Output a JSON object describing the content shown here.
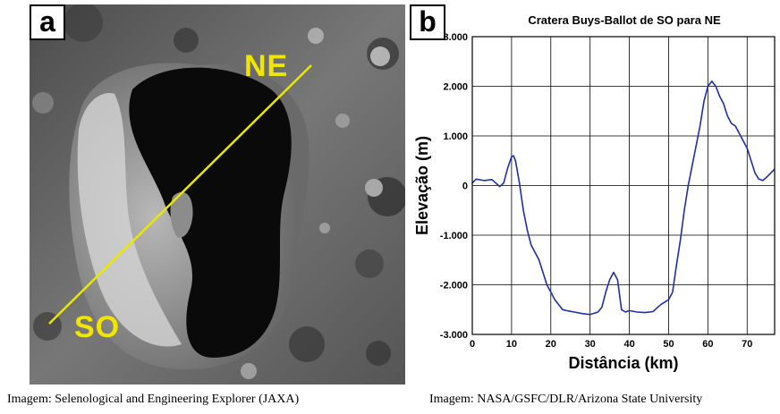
{
  "panel_a": {
    "letter": "a",
    "label_ne": "NE",
    "label_so": "SO",
    "transect_color": "#e8e800"
  },
  "panel_b": {
    "letter": "b"
  },
  "captions": {
    "left": "Imagem: Selenological and Engineering Explorer (JAXA)",
    "right": "Imagem: NASA/GSFC/DLR/Arizona State University"
  },
  "chart_data": {
    "type": "line",
    "title": "Cratera Buys-Ballot de SO para NE",
    "xlabel": "Distância (km)",
    "ylabel": "Elevação (m)",
    "xlim": [
      0,
      77
    ],
    "ylim": [
      -3000,
      3000
    ],
    "x_ticks": [
      0,
      10,
      20,
      30,
      40,
      50,
      60,
      70
    ],
    "y_ticks": [
      -3000,
      -2000,
      -1000,
      0,
      1000,
      2000,
      3000
    ],
    "y_tick_labels": [
      "-3.000",
      "-2.000",
      "-1.000",
      "0",
      "1.000",
      "2.000",
      "3.000"
    ],
    "grid": true,
    "line_color": "#1f2fa8",
    "series": [
      {
        "x": [
          0,
          1,
          3,
          5,
          7,
          8,
          9,
          10,
          10.5,
          11,
          12,
          13,
          14,
          15,
          16,
          17,
          18,
          19,
          20,
          21,
          22,
          23,
          24,
          26,
          28,
          30,
          32,
          33,
          34,
          35,
          36,
          37,
          38,
          39,
          40,
          42,
          44,
          46,
          48,
          50,
          51,
          52,
          53,
          54,
          55,
          56,
          57,
          58,
          59,
          60,
          61,
          62,
          63,
          64,
          65,
          66,
          67,
          68,
          69,
          70,
          71,
          72,
          73,
          74,
          75,
          76,
          77
        ],
        "y": [
          50,
          130,
          100,
          120,
          -20,
          50,
          350,
          580,
          600,
          500,
          50,
          -500,
          -900,
          -1200,
          -1350,
          -1500,
          -1750,
          -2000,
          -2150,
          -2300,
          -2400,
          -2500,
          -2520,
          -2550,
          -2580,
          -2600,
          -2550,
          -2450,
          -2150,
          -1900,
          -1750,
          -1900,
          -2500,
          -2550,
          -2520,
          -2550,
          -2560,
          -2540,
          -2400,
          -2300,
          -2150,
          -1600,
          -1100,
          -500,
          0,
          400,
          800,
          1200,
          1700,
          2000,
          2100,
          2000,
          1800,
          1650,
          1400,
          1250,
          1200,
          1050,
          900,
          750,
          500,
          250,
          130,
          100,
          170,
          250,
          330
        ]
      }
    ]
  }
}
